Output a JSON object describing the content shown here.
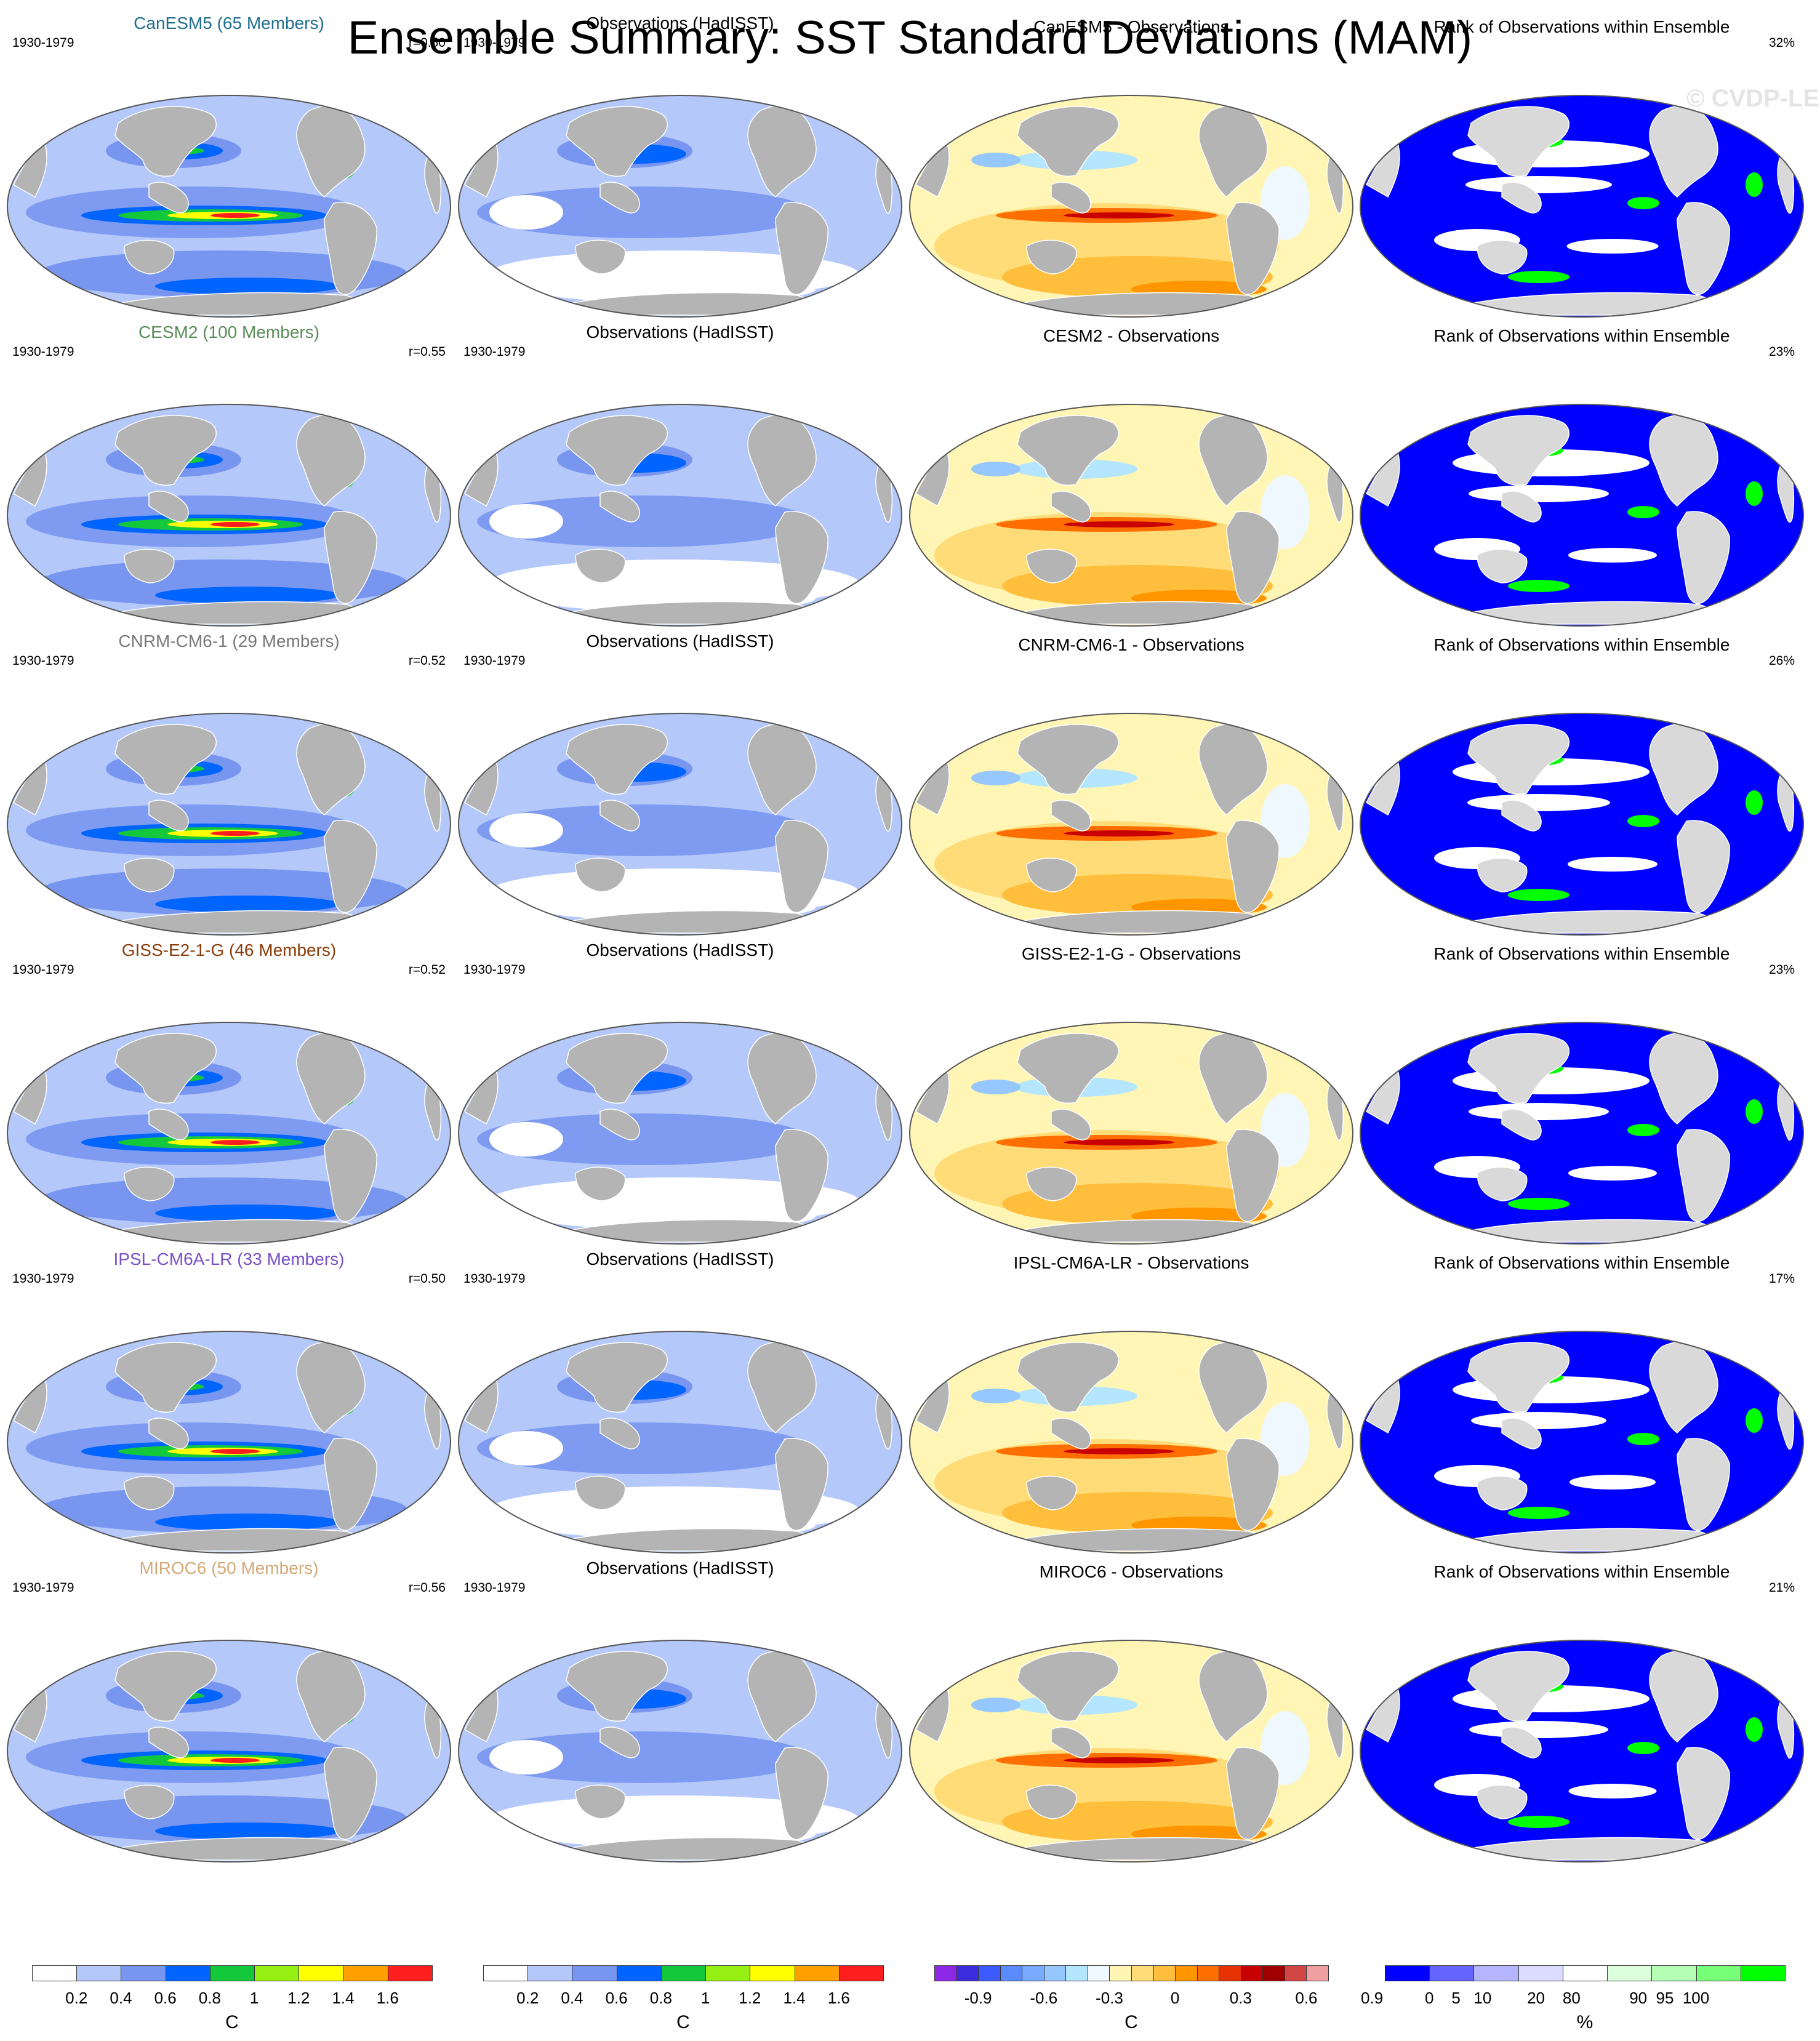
{
  "title": "Ensemble Summary: SST Standard Deviations (MAM)",
  "watermark": "© CVDP-LE",
  "period": "1930-1979",
  "colors": {
    "land_model": "#b4b4b4",
    "land_rank": "#d9d9d9",
    "stddev_scale": [
      "#ffffff",
      "#b4c8fa",
      "#7896f0",
      "#0064ff",
      "#14c83c",
      "#96f014",
      "#ffff00",
      "#ffa000",
      "#ff1e1e"
    ],
    "diff_scale": [
      "#8c28e6",
      "#3c2ddc",
      "#3c5aff",
      "#5a8cff",
      "#78aaff",
      "#96c8ff",
      "#b4e6ff",
      "#f0f8ff",
      "#fff5b4",
      "#ffdc78",
      "#ffbe3c",
      "#ff9600",
      "#ff6e00",
      "#e63200",
      "#c80000",
      "#a00000",
      "#d24646",
      "#f0a0a0"
    ],
    "rank_scale": [
      "#0000ff",
      "#6464ff",
      "#b4b4ff",
      "#dcdcff",
      "#ffffff",
      "#dcffdc",
      "#b4ffb4",
      "#78ff78",
      "#00ff00"
    ]
  },
  "rows": [
    {
      "model": "CanESM5 (65 Members)",
      "model_color": "#1f6e8c",
      "r": "r=0.50",
      "obs": "Observations (HadISST)",
      "diff": "CanESM5 - Observations",
      "rank": "Rank of Observations within Ensemble",
      "rank_pct": "32%",
      "rank_level": 0.32
    },
    {
      "model": "CESM2 (100 Members)",
      "model_color": "#5a8c5a",
      "r": "r=0.55",
      "obs": "Observations (HadISST)",
      "diff": "CESM2 - Observations",
      "rank": "Rank of Observations within Ensemble",
      "rank_pct": "23%",
      "rank_level": 0.23
    },
    {
      "model": "CNRM-CM6-1 (29 Members)",
      "model_color": "#787878",
      "r": "r=0.52",
      "obs": "Observations (HadISST)",
      "diff": "CNRM-CM6-1 - Observations",
      "rank": "Rank of Observations within Ensemble",
      "rank_pct": "26%",
      "rank_level": 0.26
    },
    {
      "model": "GISS-E2-1-G (46 Members)",
      "model_color": "#8c3c0a",
      "r": "r=0.52",
      "obs": "Observations (HadISST)",
      "diff": "GISS-E2-1-G - Observations",
      "rank": "Rank of Observations within Ensemble",
      "rank_pct": "23%",
      "rank_level": 0.23
    },
    {
      "model": "IPSL-CM6A-LR (33 Members)",
      "model_color": "#7850c8",
      "r": "r=0.50",
      "obs": "Observations (HadISST)",
      "diff": "IPSL-CM6A-LR - Observations",
      "rank": "Rank of Observations within Ensemble",
      "rank_pct": "17%",
      "rank_level": 0.17
    },
    {
      "model": "MIROC6 (50 Members)",
      "model_color": "#d2aa78",
      "r": "r=0.56",
      "obs": "Observations (HadISST)",
      "diff": "MIROC6 - Observations",
      "rank": "Rank of Observations within Ensemble",
      "rank_pct": "21%",
      "rank_level": 0.21
    }
  ],
  "colorbars": {
    "stddev_ticks": [
      "0.2",
      "0.4",
      "0.6",
      "0.8",
      "1",
      "1.2",
      "1.4",
      "1.6"
    ],
    "stddev_unit": "C",
    "diff_ticks": [
      "-0.9",
      "-0.6",
      "-0.3",
      "0",
      "0.3",
      "0.6",
      "0.9"
    ],
    "diff_unit": "C",
    "rank_ticks": [
      "0",
      "5",
      "10",
      "20",
      "80",
      "90",
      "95",
      "100"
    ],
    "rank_unit": "%"
  }
}
